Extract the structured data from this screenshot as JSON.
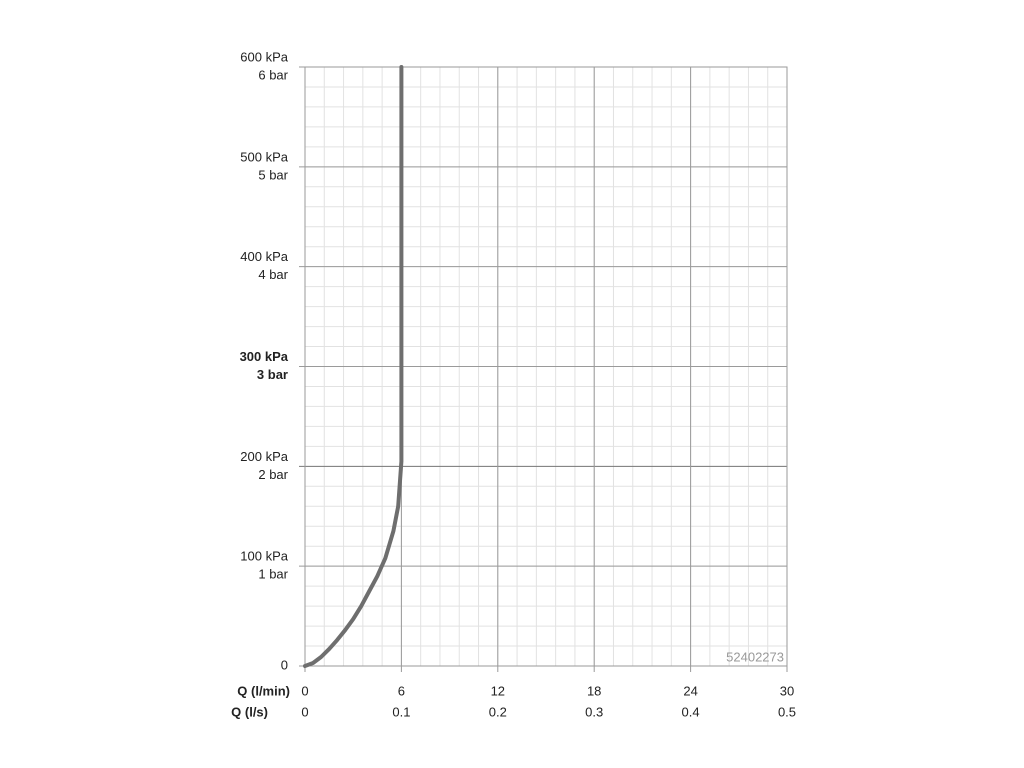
{
  "chart_data": {
    "type": "line",
    "x_label": "Q (l/min)",
    "x2_label": "Q (l/s)",
    "annotation": "52402273",
    "x": [
      0,
      0.5,
      1,
      1.5,
      2,
      2.5,
      3,
      3.5,
      4,
      4.5,
      5,
      5.5,
      5.8,
      6,
      6
    ],
    "series": [
      {
        "color": "#6e6e6e",
        "values": [
          0,
          3,
          9,
          17,
          26,
          36,
          47,
          60,
          75,
          90,
          108,
          135,
          160,
          205,
          600
        ]
      }
    ],
    "xlim": [
      0,
      30
    ],
    "xticks": [
      0,
      6,
      12,
      18,
      24,
      30
    ],
    "x2lim": [
      0,
      0.5
    ],
    "x2ticks": [
      0,
      0.1,
      0.2,
      0.3,
      0.4,
      0.5
    ],
    "ylim": [
      0,
      600
    ],
    "yticks": [
      0,
      {
        "value": 100,
        "label": "100 kPa"
      },
      {
        "value": 200,
        "label": "200 kPa"
      },
      {
        "value": 300,
        "label": "300 kPa"
      },
      {
        "value": 400,
        "label": "400 kPa"
      },
      {
        "value": 500,
        "label": "500 kPa"
      },
      {
        "value": 600,
        "label": "600 kPa"
      }
    ],
    "y2lim": [
      0,
      6
    ],
    "y2ticks": [
      {
        "value": 1,
        "label": "1 bar"
      },
      {
        "value": 2,
        "label": "2 bar"
      },
      {
        "value": 3,
        "label": "3 bar"
      },
      {
        "value": 4,
        "label": "4 bar"
      },
      {
        "value": 5,
        "label": "5 bar"
      },
      {
        "value": 6,
        "label": "6 bar"
      }
    ],
    "bold_ytick": 300,
    "grid": true
  }
}
